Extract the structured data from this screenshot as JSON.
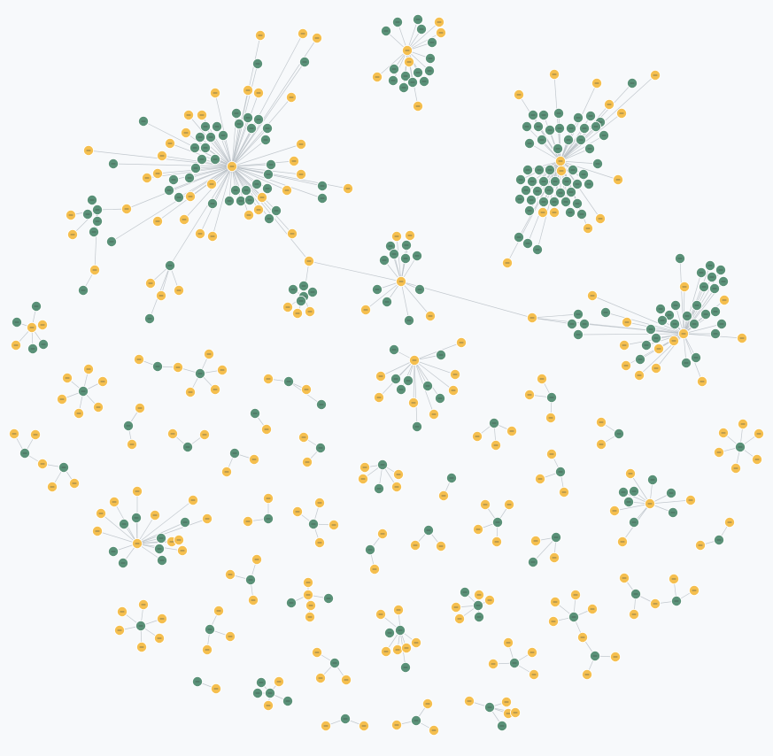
{
  "graph": {
    "colors": {
      "background": "#f7f9fb",
      "edge": "#b9bfc5",
      "entity": "#5a9178",
      "document": "#f5bf4f"
    },
    "node_types": [
      "entity",
      "document"
    ],
    "visible_text": []
  }
}
